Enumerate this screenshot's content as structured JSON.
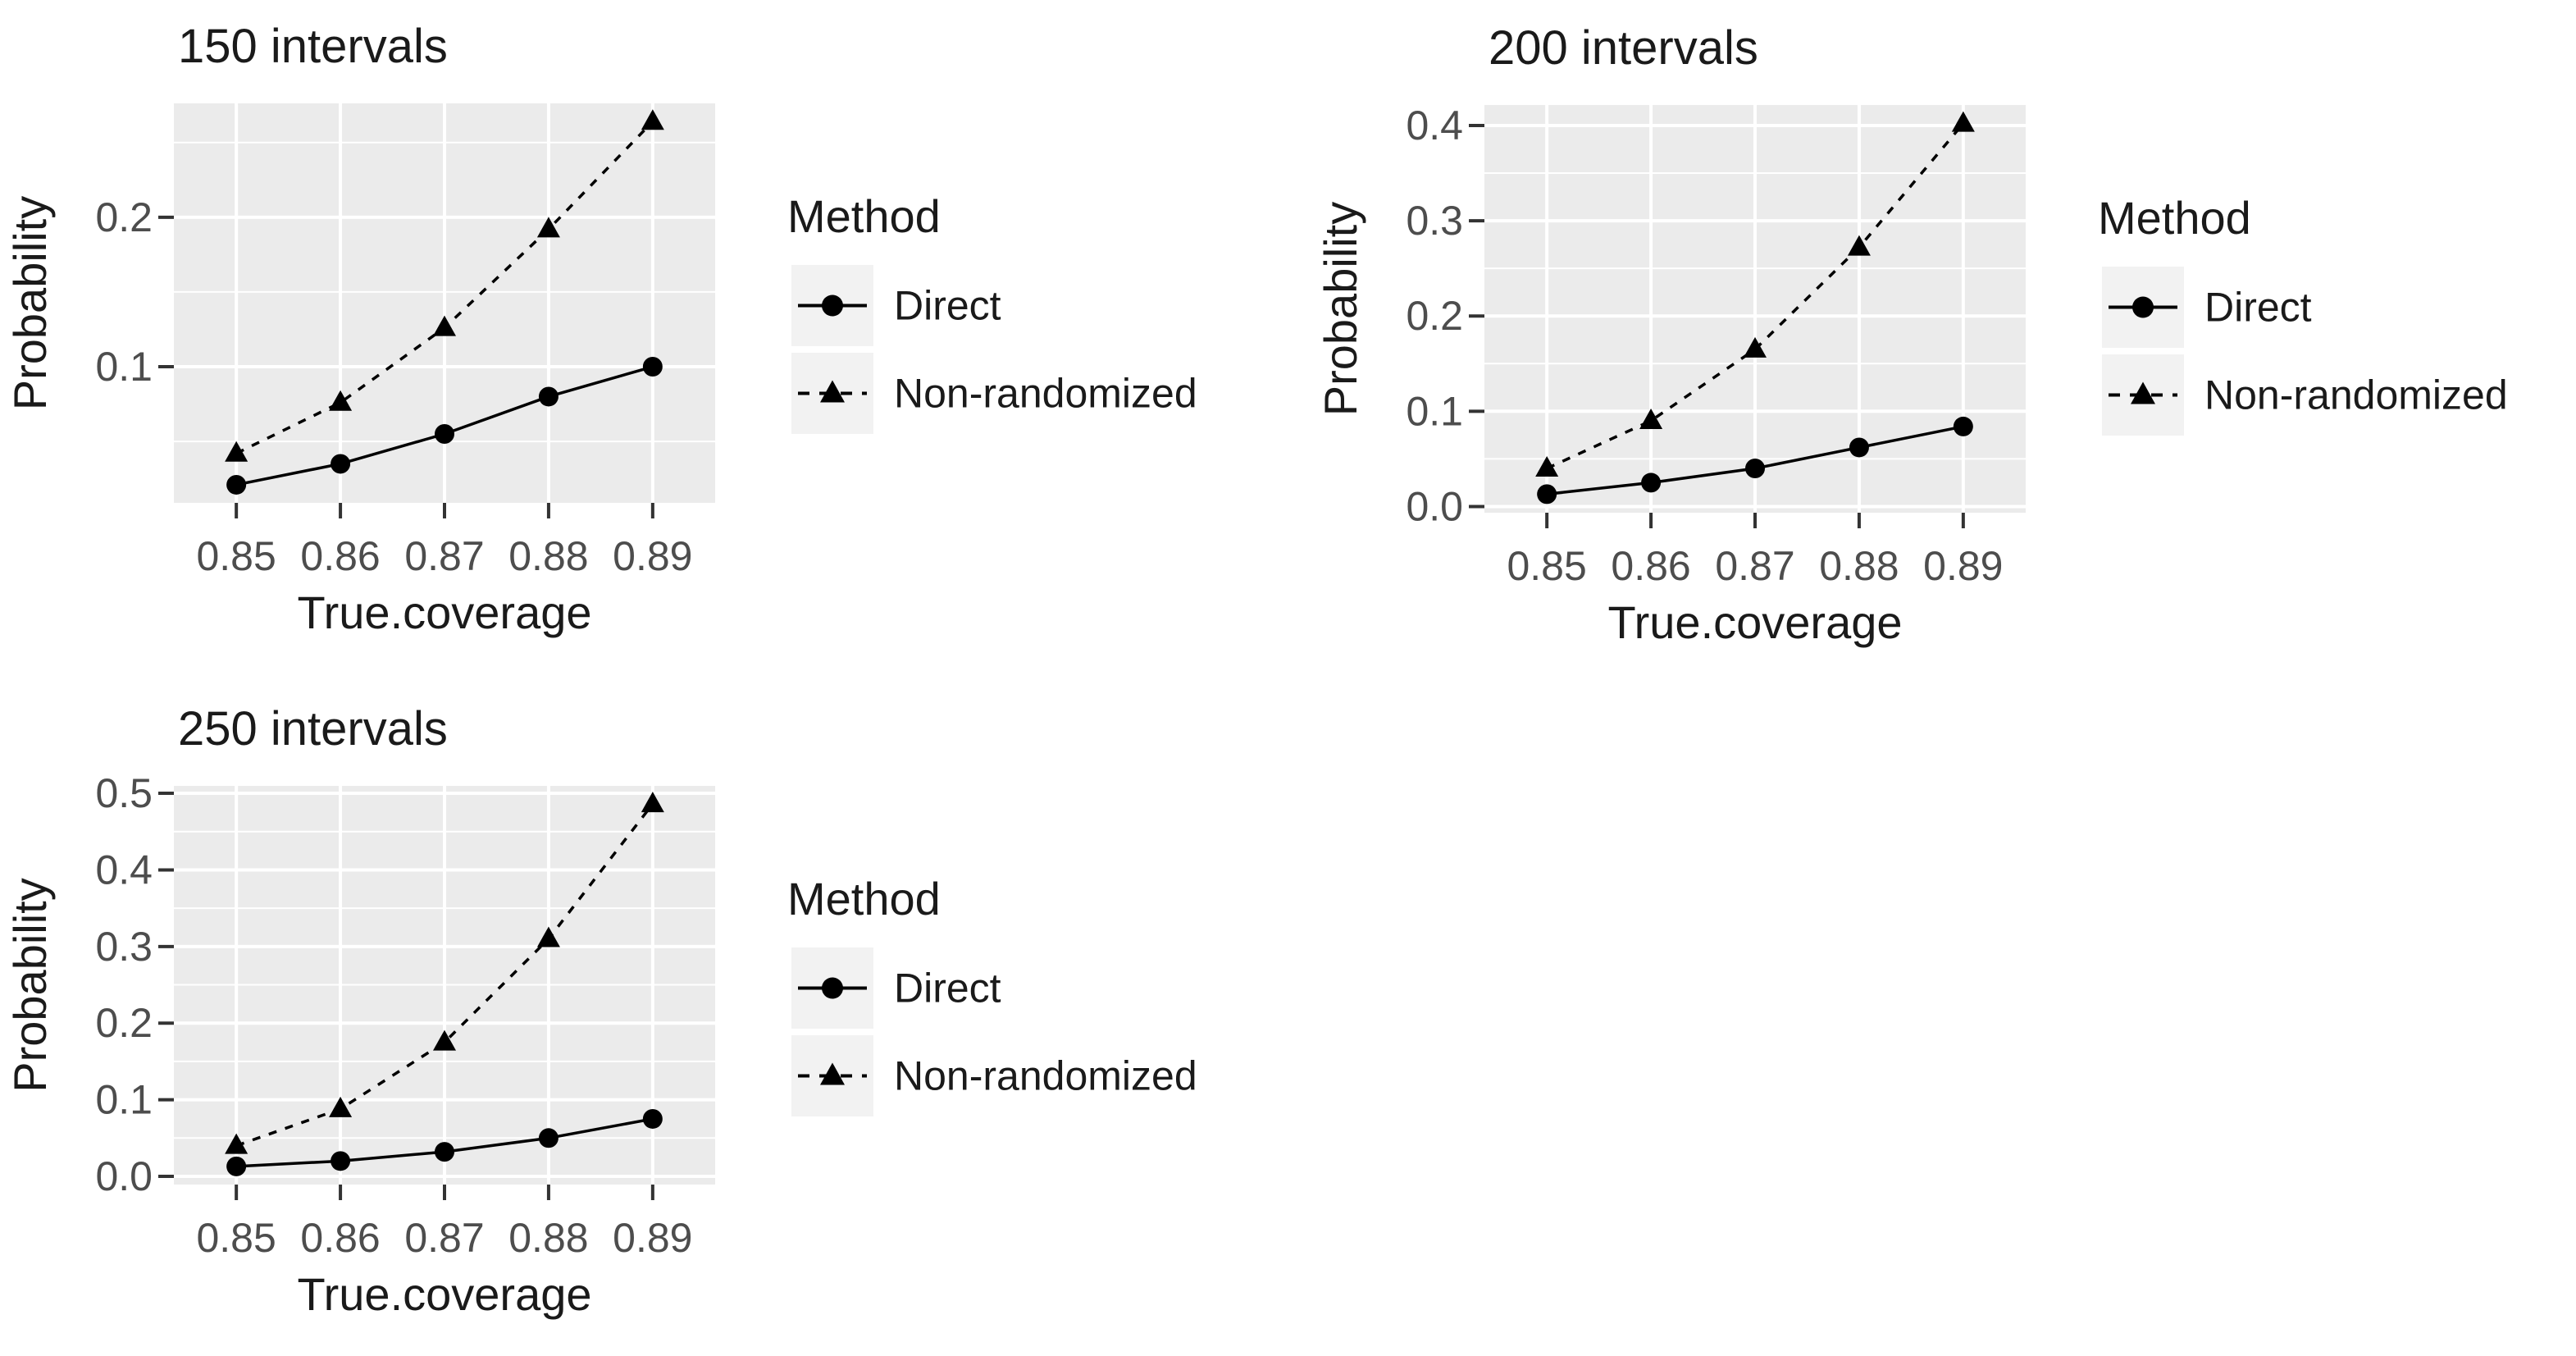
{
  "figure_title": "",
  "style": {
    "page_bg": "#FFFFFF",
    "panel_bg": "#EBEBEB",
    "grid_color": "#FFFFFF",
    "legend_key_bg": "#F2F2F2",
    "series_color": "#000000",
    "title_text_color": "#1A1A1A",
    "axis_title_color": "#1A1A1A",
    "tick_label_color": "#4D4D4D",
    "tick_mark_color": "#333333"
  },
  "chart_data": [
    {
      "type": "line",
      "title": "150 intervals",
      "xlabel": "True.coverage",
      "ylabel": "Probability",
      "legend_title": "Method",
      "legend_position": "right",
      "grid": true,
      "x_categories": [
        "0.85",
        "0.86",
        "0.87",
        "0.88",
        "0.89"
      ],
      "x_values": [
        0.85,
        0.86,
        0.87,
        0.88,
        0.89
      ],
      "y_ticks": [
        0.1,
        0.2
      ],
      "y_tick_labels": [
        "0.1",
        "0.2"
      ],
      "y_minor_step": 0.05,
      "ylim": [
        0.0089,
        0.2762
      ],
      "series": [
        {
          "name": "Direct",
          "line": "solid",
          "marker": "circle",
          "values": [
            0.021,
            0.035,
            0.055,
            0.08,
            0.1
          ]
        },
        {
          "name": "Non-randomized",
          "line": "dashed",
          "marker": "triangle",
          "values": [
            0.042,
            0.076,
            0.126,
            0.192,
            0.264
          ]
        }
      ]
    },
    {
      "type": "line",
      "title": "200 intervals",
      "xlabel": "True.coverage",
      "ylabel": "Probability",
      "legend_title": "Method",
      "legend_position": "right",
      "grid": true,
      "x_categories": [
        "0.85",
        "0.86",
        "0.87",
        "0.88",
        "0.89"
      ],
      "x_values": [
        0.85,
        0.86,
        0.87,
        0.88,
        0.89
      ],
      "y_ticks": [
        0.0,
        0.1,
        0.2,
        0.3,
        0.4
      ],
      "y_tick_labels": [
        "0.0",
        "0.1",
        "0.2",
        "0.3",
        "0.4"
      ],
      "y_minor_step": 0.05,
      "ylim": [
        -0.0065,
        0.4215
      ],
      "series": [
        {
          "name": "Direct",
          "line": "solid",
          "marker": "circle",
          "values": [
            0.013,
            0.025,
            0.04,
            0.062,
            0.084
          ]
        },
        {
          "name": "Non-randomized",
          "line": "dashed",
          "marker": "triangle",
          "values": [
            0.04,
            0.09,
            0.165,
            0.272,
            0.402
          ]
        }
      ]
    },
    {
      "type": "line",
      "title": "250 intervals",
      "xlabel": "True.coverage",
      "ylabel": "Probability",
      "legend_title": "Method",
      "legend_position": "right",
      "grid": true,
      "x_categories": [
        "0.85",
        "0.86",
        "0.87",
        "0.88",
        "0.89"
      ],
      "x_values": [
        0.85,
        0.86,
        0.87,
        0.88,
        0.89
      ],
      "y_ticks": [
        0.0,
        0.1,
        0.2,
        0.3,
        0.4,
        0.5
      ],
      "y_tick_labels": [
        "0.0",
        "0.1",
        "0.2",
        "0.3",
        "0.4",
        "0.5"
      ],
      "y_minor_step": 0.05,
      "ylim": [
        -0.0107,
        0.5097
      ],
      "series": [
        {
          "name": "Direct",
          "line": "solid",
          "marker": "circle",
          "values": [
            0.013,
            0.02,
            0.032,
            0.05,
            0.075
          ]
        },
        {
          "name": "Non-randomized",
          "line": "dashed",
          "marker": "triangle",
          "values": [
            0.04,
            0.088,
            0.175,
            0.31,
            0.486
          ]
        }
      ]
    }
  ]
}
